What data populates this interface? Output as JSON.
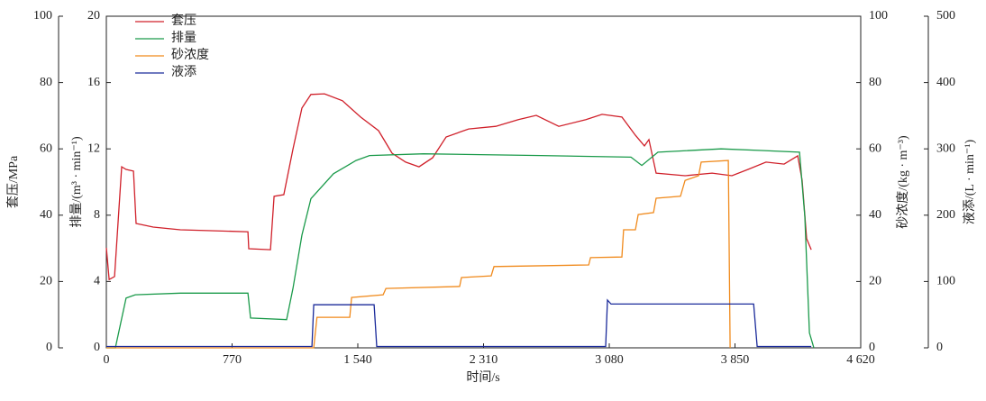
{
  "chart_data": {
    "type": "line",
    "xlabel": "时间/s",
    "xlim": [
      0,
      4620
    ],
    "xticks": [
      0,
      770,
      {
        "value": 1540,
        "label": "1 540"
      },
      {
        "value": 2310,
        "label": "2 310"
      },
      {
        "value": 3080,
        "label": "3 080"
      },
      {
        "value": 3850,
        "label": "3 850"
      },
      {
        "value": 4620,
        "label": "4 620"
      }
    ],
    "y_axes": [
      {
        "label": "套压/MPa",
        "ylim": [
          0,
          100
        ],
        "yticks": [
          0,
          20,
          40,
          60,
          80,
          100
        ]
      },
      {
        "label": "排量/(m³ · min⁻¹)",
        "ylim": [
          0,
          20
        ],
        "yticks": [
          0,
          4,
          8,
          12,
          16,
          20
        ]
      },
      {
        "label": "砂浓度/(kg · m⁻³)",
        "ylim": [
          0,
          100
        ],
        "yticks": [
          0,
          20,
          40,
          60,
          80,
          100
        ]
      },
      {
        "label": "液添/(L · min⁻¹)",
        "ylim": [
          0,
          500
        ],
        "yticks": [
          0,
          100,
          200,
          300,
          400,
          500
        ]
      }
    ],
    "series": [
      {
        "name": "套压",
        "color": "#d0202a",
        "axis": 0,
        "x": [
          0,
          17,
          50,
          94,
          121,
          166,
          182,
          287,
          453,
          867,
          872,
          1005,
          1027,
          1087,
          1143,
          1198,
          1253,
          1336,
          1446,
          1557,
          1667,
          1750,
          1833,
          1915,
          1998,
          2081,
          2219,
          2385,
          2523,
          2633,
          2771,
          2937,
          3036,
          3157,
          3240,
          3295,
          3323,
          3367,
          3544,
          3710,
          3831,
          3930,
          4040,
          4151,
          4234,
          4261,
          4289,
          4317
        ],
        "values": [
          30.2,
          20.6,
          21.5,
          54.6,
          53.8,
          53.3,
          37.5,
          36.4,
          35.6,
          35.0,
          29.9,
          29.6,
          45.7,
          46.2,
          60,
          72.3,
          76.4,
          76.6,
          74.5,
          69.6,
          65.5,
          58.7,
          56,
          54.6,
          57.3,
          63.6,
          66,
          66.8,
          68.8,
          70.1,
          66.8,
          68.8,
          70.4,
          69.6,
          64.1,
          60.9,
          62.8,
          52.7,
          51.9,
          52.7,
          51.9,
          53.8,
          56,
          55.4,
          57.9,
          50.5,
          32.9,
          29.6
        ]
      },
      {
        "name": "排量",
        "color": "#1a9a4a",
        "axis": 1,
        "x": [
          0,
          55,
          121,
          177,
          453,
          867,
          883,
          1104,
          1143,
          1198,
          1253,
          1391,
          1529,
          1612,
          1943,
          2661,
          3213,
          3279,
          3378,
          3765,
          4013,
          4245,
          4278,
          4306,
          4333
        ],
        "values": [
          0,
          0,
          3.0,
          3.2,
          3.3,
          3.3,
          1.8,
          1.7,
          3.6,
          6.8,
          9.0,
          10.5,
          11.3,
          11.6,
          11.7,
          11.6,
          11.5,
          11.0,
          11.8,
          12.0,
          11.9,
          11.8,
          7.9,
          0.9,
          0
        ]
      },
      {
        "name": "砂浓度",
        "color": "#f08a1c",
        "axis": 2,
        "x": [
          0,
          1270,
          1290,
          1491,
          1502,
          1695,
          1712,
          2164,
          2175,
          2357,
          2374,
          2954,
          2965,
          3157,
          3168,
          3240,
          3257,
          3351,
          3367,
          3516,
          3544,
          3627,
          3643,
          3809,
          3820
        ],
        "values": [
          0,
          0,
          9.2,
          9.2,
          15.2,
          16,
          17.9,
          18.5,
          21.2,
          21.7,
          24.5,
          25,
          27.2,
          27.4,
          35.6,
          35.6,
          40.2,
          40.8,
          45.1,
          45.7,
          50.5,
          51.9,
          56,
          56.5,
          0
        ]
      },
      {
        "name": "液添",
        "color": "#1a2a9a",
        "axis": 3,
        "x": [
          0,
          1259,
          1270,
          1640,
          1656,
          3058,
          3069,
          3091,
          3964,
          3986,
          4317
        ],
        "values": [
          2,
          2,
          65,
          65,
          2,
          2,
          72,
          66,
          66,
          2,
          2
        ]
      }
    ]
  }
}
